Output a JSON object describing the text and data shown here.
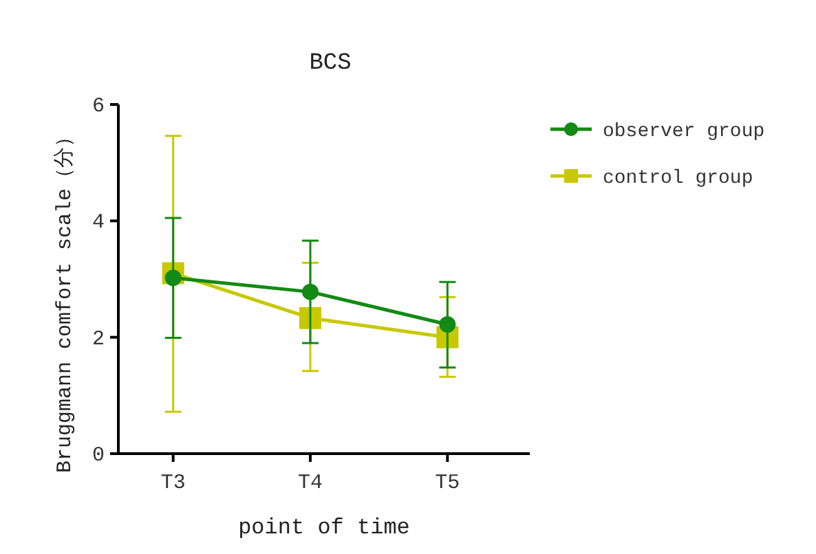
{
  "chart_data": {
    "type": "line",
    "title": "BCS",
    "xlabel": "point of time",
    "ylabel": "Bruggmann comfort scale（分）",
    "categories": [
      "T3",
      "T4",
      "T5"
    ],
    "ylim": [
      0,
      6
    ],
    "yticks": [
      0,
      2,
      4,
      6
    ],
    "legend": "right",
    "line_style": "solid",
    "series": [
      {
        "name": "observer group",
        "color": "#138a13",
        "marker": "circle",
        "values": [
          3.02,
          2.78,
          2.22
        ],
        "errors": [
          [
            1.99,
            4.05
          ],
          [
            1.9,
            3.66
          ],
          [
            1.48,
            2.95
          ]
        ]
      },
      {
        "name": "control group",
        "color": "#c8c800",
        "marker": "square",
        "values": [
          3.1,
          2.33,
          2.0
        ],
        "errors": [
          [
            0.72,
            5.46
          ],
          [
            1.42,
            3.28
          ],
          [
            1.32,
            2.69
          ]
        ]
      }
    ]
  }
}
